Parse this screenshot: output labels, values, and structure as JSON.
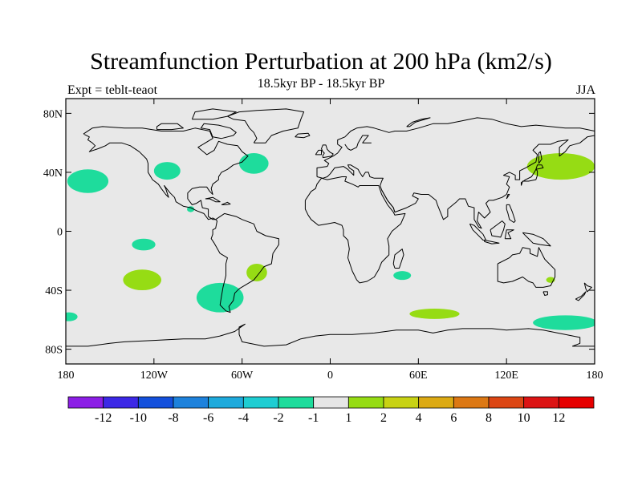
{
  "header": {
    "title": "Streamfunction Perturbation at 200 hPa (km2/s)",
    "subtitle": "18.5kyr BP - 18.5kyr BP",
    "left_label": "Expt = teblt-teaot",
    "right_label": "JJA"
  },
  "map": {
    "projection": "cylindrical-equidistant",
    "lon_range": [
      -180,
      180
    ],
    "lat_range": [
      -90,
      90
    ],
    "background_color": "#e8e8e8",
    "coast_color": "#000000",
    "lat_ticks": [
      {
        "value": 80,
        "label": "80N"
      },
      {
        "value": 40,
        "label": "40N"
      },
      {
        "value": 0,
        "label": "0"
      },
      {
        "value": -40,
        "label": "40S"
      },
      {
        "value": -80,
        "label": "80S"
      }
    ],
    "lon_ticks": [
      {
        "value": -180,
        "label": "180"
      },
      {
        "value": -120,
        "label": "120W"
      },
      {
        "value": -60,
        "label": "60W"
      },
      {
        "value": 0,
        "label": "0"
      },
      {
        "value": 60,
        "label": "60E"
      },
      {
        "value": 120,
        "label": "120E"
      },
      {
        "value": 180,
        "label": "180"
      }
    ]
  },
  "chart_data": {
    "type": "heatmap",
    "title": "Streamfunction Perturbation at 200 hPa (km2/s)",
    "units": "km2/s",
    "anomaly_regions": [
      {
        "name": "north-pacific-negative",
        "lon": -165,
        "lat": 34,
        "lon_half_width": 14,
        "lat_half_height": 8,
        "value": -1.5,
        "color": "#1edc9c"
      },
      {
        "name": "western-north-america-negative",
        "lon": -111,
        "lat": 41,
        "lon_half_width": 9,
        "lat_half_height": 6,
        "value": -1.5,
        "color": "#1edc9c"
      },
      {
        "name": "central-america-negative",
        "lon": -95,
        "lat": 15,
        "lon_half_width": 2.5,
        "lat_half_height": 2,
        "value": -1.5,
        "color": "#1edc9c"
      },
      {
        "name": "north-atlantic-negative",
        "lon": -52,
        "lat": 46,
        "lon_half_width": 10,
        "lat_half_height": 7,
        "value": -1.5,
        "color": "#1edc9c"
      },
      {
        "name": "eastern-tropical-pacific-negative",
        "lon": -127,
        "lat": -9,
        "lon_half_width": 8,
        "lat_half_height": 4,
        "value": -1.5,
        "color": "#1edc9c"
      },
      {
        "name": "south-pacific-positive",
        "lon": -128,
        "lat": -33,
        "lon_half_width": 13,
        "lat_half_height": 7,
        "value": 1.5,
        "color": "#96dc14"
      },
      {
        "name": "southeast-pacific-negative",
        "lon": -75,
        "lat": -45,
        "lon_half_width": 16,
        "lat_half_height": 10,
        "value": -1.5,
        "color": "#1edc9c"
      },
      {
        "name": "south-atlantic-positive",
        "lon": -50,
        "lat": -28,
        "lon_half_width": 7,
        "lat_half_height": 6,
        "value": 1.5,
        "color": "#96dc14"
      },
      {
        "name": "far-southwest-pacific-negative",
        "lon": -178,
        "lat": -58,
        "lon_half_width": 6,
        "lat_half_height": 3,
        "value": -1.5,
        "color": "#1edc9c"
      },
      {
        "name": "south-indian-ocean-negative",
        "lon": 49,
        "lat": -30,
        "lon_half_width": 6,
        "lat_half_height": 3,
        "value": -1.5,
        "color": "#1edc9c"
      },
      {
        "name": "southern-ocean-positive",
        "lon": 71,
        "lat": -56,
        "lon_half_width": 17,
        "lat_half_height": 3.5,
        "value": 1.5,
        "color": "#96dc14"
      },
      {
        "name": "tasman-sea-positive",
        "lon": 150,
        "lat": -33,
        "lon_half_width": 3,
        "lat_half_height": 2,
        "value": 1.5,
        "color": "#96dc14"
      },
      {
        "name": "south-pacific-high-latitude-negative",
        "lon": 160,
        "lat": -62,
        "lon_half_width": 22,
        "lat_half_height": 5,
        "value": -1.5,
        "color": "#1edc9c"
      },
      {
        "name": "northwest-pacific-positive",
        "lon": 157,
        "lat": 44,
        "lon_half_width": 23,
        "lat_half_height": 9,
        "value": 1.5,
        "color": "#96dc14"
      }
    ],
    "legend": {
      "labels": [
        "-12",
        "-10",
        "-8",
        "-6",
        "-4",
        "-2",
        "-1",
        "1",
        "2",
        "4",
        "6",
        "8",
        "10",
        "12"
      ],
      "colors": [
        "#8c1ee6",
        "#3c28e6",
        "#1450dc",
        "#1e82dc",
        "#1eaadc",
        "#1ecdd2",
        "#1edc9c",
        "#e6e6e6",
        "#96dc14",
        "#c8d214",
        "#dcaa14",
        "#dc7814",
        "#dc4614",
        "#dc1414",
        "#e60000"
      ]
    }
  }
}
